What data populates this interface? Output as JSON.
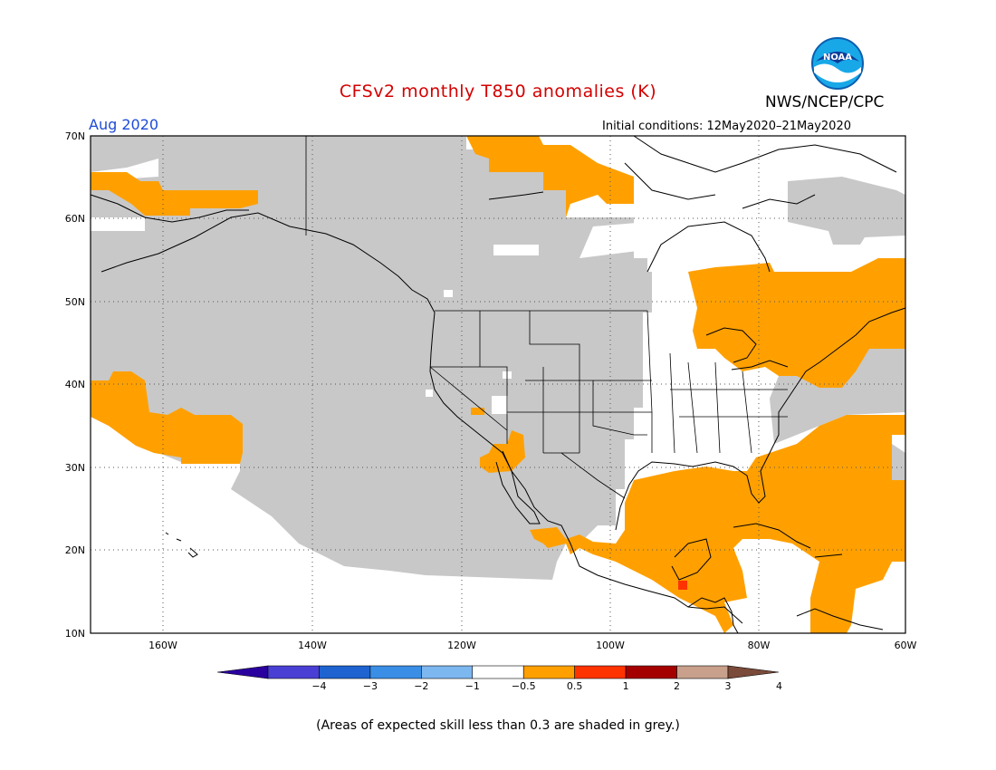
{
  "title": "CFSv2 monthly T850 anomalies (K)",
  "agency": "NWS/NCEP/CPC",
  "logo_text": "NOAA",
  "month": "Aug 2020",
  "initial_conditions": "Initial conditions: 12May2020–21May2020",
  "footnote": "(Areas of expected skill less than 0.3 are shaded in grey.)",
  "map": {
    "lon_range": [
      -172,
      -60
    ],
    "lat_range": [
      10,
      70
    ],
    "lat_labels": [
      "70N",
      "60N",
      "50N",
      "40N",
      "30N",
      "20N",
      "10N"
    ],
    "lon_labels": [
      "160W",
      "140W",
      "120W",
      "100W",
      "80W",
      "60W"
    ],
    "colors": {
      "low_skill": "#c8c8c8",
      "anomaly_0_5_to_1": "#ffa000",
      "anomaly_1_to_2": "#ff3300",
      "coast": "#000000"
    }
  },
  "legend": {
    "labels": [
      "−4",
      "−3",
      "−2",
      "−1",
      "−0.5",
      "0.5",
      "1",
      "2",
      "3",
      "4"
    ],
    "colors": [
      "#2a009e",
      "#4a3fd4",
      "#1e63d0",
      "#3a8ee6",
      "#7db7f0",
      "#ffffff",
      "#ffa000",
      "#ff3300",
      "#a50000",
      "#c8a08c",
      "#7a4a3a"
    ]
  }
}
